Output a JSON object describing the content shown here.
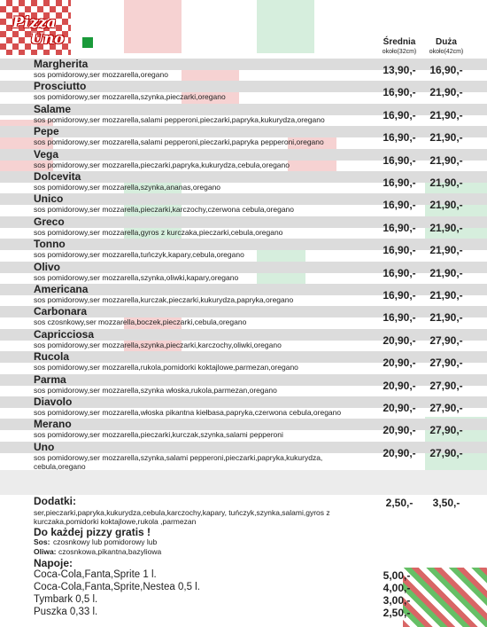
{
  "header": {
    "logo_line1": "Pizza",
    "logo_line2": "Uno",
    "columns": [
      {
        "label": "Średnia",
        "size": "około(32cm)"
      },
      {
        "label": "Duża",
        "size": "około(42cm)"
      }
    ]
  },
  "pizzas": [
    {
      "name": "Margherita",
      "ingredients": "sos pomidorowy,ser mozzarella,oregano",
      "price_medium": "13,90,-",
      "price_large": "16,90,-"
    },
    {
      "name": "Prosciutto",
      "ingredients": "sos pomidorowy,ser mozzarella,szynka,pieczarki,oregano",
      "price_medium": "16,90,-",
      "price_large": "21,90,-"
    },
    {
      "name": "Salame",
      "ingredients": "sos pomidorowy,ser mozzarella,salami pepperoni,pieczarki,papryka,kukurydza,oregano",
      "price_medium": "16,90,-",
      "price_large": "21,90,-"
    },
    {
      "name": "Pepe",
      "ingredients": "sos pomidorowy,ser mozzarella,salami pepperoni,pieczarki,papryka pepperoni,oregano",
      "price_medium": "16,90,-",
      "price_large": "21,90,-"
    },
    {
      "name": "Vega",
      "ingredients": "sos pomidorowy,ser mozzarella,pieczarki,papryka,kukurydza,cebula,oregano",
      "price_medium": "16,90,-",
      "price_large": "21,90,-"
    },
    {
      "name": "Dolcevita",
      "ingredients": "sos pomidorowy,ser mozzarella,szynka,ananas,oregano",
      "price_medium": "16,90,-",
      "price_large": "21,90,-"
    },
    {
      "name": "Unico",
      "ingredients": "sos pomidorowy,ser mozzarella,pieczarki,karczochy,czerwona cebula,oregano",
      "price_medium": "16,90,-",
      "price_large": "21,90,-"
    },
    {
      "name": "Greco",
      "ingredients": "sos pomidorowy,ser mozzarella,gyros z kurczaka,pieczarki,cebula,oregano",
      "price_medium": "16,90,-",
      "price_large": "21,90,-"
    },
    {
      "name": "Tonno",
      "ingredients": "sos pomidorowy,ser mozzarella,tuńczyk,kapary,cebula,oregano",
      "price_medium": "16,90,-",
      "price_large": "21,90,-"
    },
    {
      "name": "Olivo",
      "ingredients": "sos pomidorowy,ser mozzarella,szynka,oliwki,kapary,oregano",
      "price_medium": "16,90,-",
      "price_large": "21,90,-"
    },
    {
      "name": "Americana",
      "ingredients": "sos pomidorowy,ser mozzarella,kurczak,pieczarki,kukurydza,papryka,oregano",
      "price_medium": "16,90,-",
      "price_large": "21,90,-"
    },
    {
      "name": "Carbonara",
      "ingredients": "sos czosnkowy,ser mozzarella,boczek,pieczarki,cebula,oregano",
      "price_medium": "16,90,-",
      "price_large": "21,90,-"
    },
    {
      "name": "Capricciosa",
      "ingredients": "sos pomidorowy,ser mozzarella,szynka,pieczarki,karczochy,oliwki,oregano",
      "price_medium": "20,90,-",
      "price_large": "27,90,-"
    },
    {
      "name": "Rucola",
      "ingredients": "sos pomidorowy,ser mozzarella,rukola,pomidorki koktajlowe,parmezan,oregano",
      "price_medium": "20,90,-",
      "price_large": "27,90,-"
    },
    {
      "name": "Parma",
      "ingredients": "sos pomidorowy,ser mozzarella,szynka włoska,rukola,parmezan,oregano",
      "price_medium": "20,90,-",
      "price_large": "27,90,-"
    },
    {
      "name": "Diavolo",
      "ingredients": "sos pomidorowy,ser mozzarella,włoska pikantna kiełbasa,papryka,czerwona cebula,oregano",
      "price_medium": "20,90,-",
      "price_large": "27,90,-"
    },
    {
      "name": "Merano",
      "ingredients": "sos pomidorowy,ser mozzarella,pieczarki,kurczak,szynka,salami pepperoni",
      "price_medium": "20,90,-",
      "price_large": "27,90,-"
    },
    {
      "name": "Uno",
      "ingredients": "sos pomidorowy,ser mozzarella,szynka,salami pepperoni,pieczarki,papryka,kukurydza, cebula,oregano",
      "price_medium": "20,90,-",
      "price_large": "27,90,-"
    }
  ],
  "extras": {
    "title": "Dodatki:",
    "items": "ser,pieczarki,papryka,kukurydza,cebula,karczochy,kapary, tuńczyk,szynka,salami,gyros z kurczaka,pomidorki koktajlowe,rukola ,parmezan",
    "price_medium": "2,50,-",
    "price_large": "3,50,-"
  },
  "free": {
    "title": "Do każdej pizzy gratis !",
    "sauce_label": "Sos:",
    "sauce": "czosnkowy lub pomidorowy lub",
    "oil_label": "Oliwa:",
    "oil": "czosnkowa,pikantna,bazyliowa"
  },
  "drinks": {
    "title": "Napoje:",
    "items": [
      {
        "name": "Coca-Cola,Fanta,Sprite 1 l.",
        "price": "5,00,-"
      },
      {
        "name": "Coca-Cola,Fanta,Sprite,Nestea 0,5 l.",
        "price": "4,00,-"
      },
      {
        "name": "Tymbark 0,5 l.",
        "price": "3,00,-"
      },
      {
        "name": "Puszka 0,33 l.",
        "price": "2,50,-"
      }
    ]
  }
}
